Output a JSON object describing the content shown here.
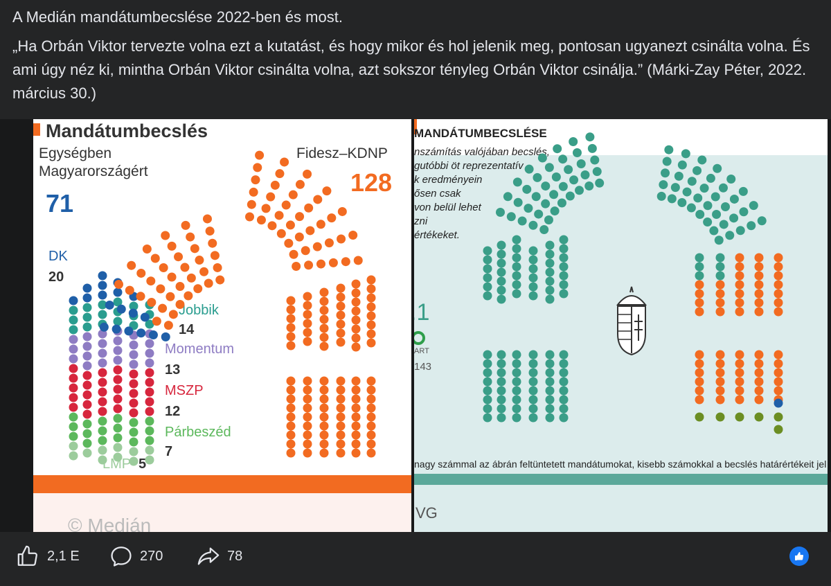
{
  "post": {
    "title": "A Medián mandátumbecslése 2022-ben és most.",
    "quote": "„Ha Orbán Viktor tervezte volna ezt a kutatást, és hogy mikor és hol jelenik meg, pontosan ugyanezt csinálta volna. És ami úgy néz ki, mintha Orbán Viktor csinálta volna, azt sokszor tényleg Orbán Viktor csinálja.” (Márki-Zay Péter, 2022. március 30.)"
  },
  "left_chart": {
    "heading": "Mandátumbecslés",
    "opposition_label_line1": "Egységben",
    "opposition_label_line2": "Magyarországért",
    "opposition_seats": "71",
    "fidesz_label": "Fidesz–KDNP",
    "fidesz_seats": "128",
    "parties": [
      {
        "name": "DK",
        "seats": "20",
        "color": "#1f5fa8"
      },
      {
        "name": "Jobbik",
        "seats": "14",
        "color": "#2a9d8f"
      },
      {
        "name": "Momentum",
        "seats": "13",
        "color": "#8e7cc3"
      },
      {
        "name": "MSZP",
        "seats": "12",
        "color": "#d7263d"
      },
      {
        "name": "Párbeszéd",
        "seats": "7",
        "color": "#5cb85c"
      },
      {
        "name": "LMP",
        "seats": "5",
        "color": "#9ccc9c"
      }
    ],
    "source": "© Medián",
    "colors": {
      "fidesz": "#f26b21",
      "dk": "#1f5fa8"
    }
  },
  "right_chart": {
    "heading": "MANDÁTUMBECSLÉSE",
    "note_lines": [
      "nszámítás valójában becslés,",
      "gutóbbi öt reprezentatív",
      "k eredményein",
      "ősen csak",
      "von belül lehet",
      "zni",
      "értékeket."
    ],
    "side_number": ".1",
    "side_label": "ART",
    "side_sub": "143",
    "footnote": "nagy számmal az ábrán feltüntetett mandátumokat, kisebb számokkal a becslés határértékeit jel",
    "source": "VG",
    "colors": {
      "teal": "#3a9e88",
      "orange": "#f26b21",
      "navy": "#1f5fa8",
      "olive": "#6b8e23"
    }
  },
  "actions": {
    "likes": "2,1 E",
    "comments": "270",
    "shares": "78"
  }
}
